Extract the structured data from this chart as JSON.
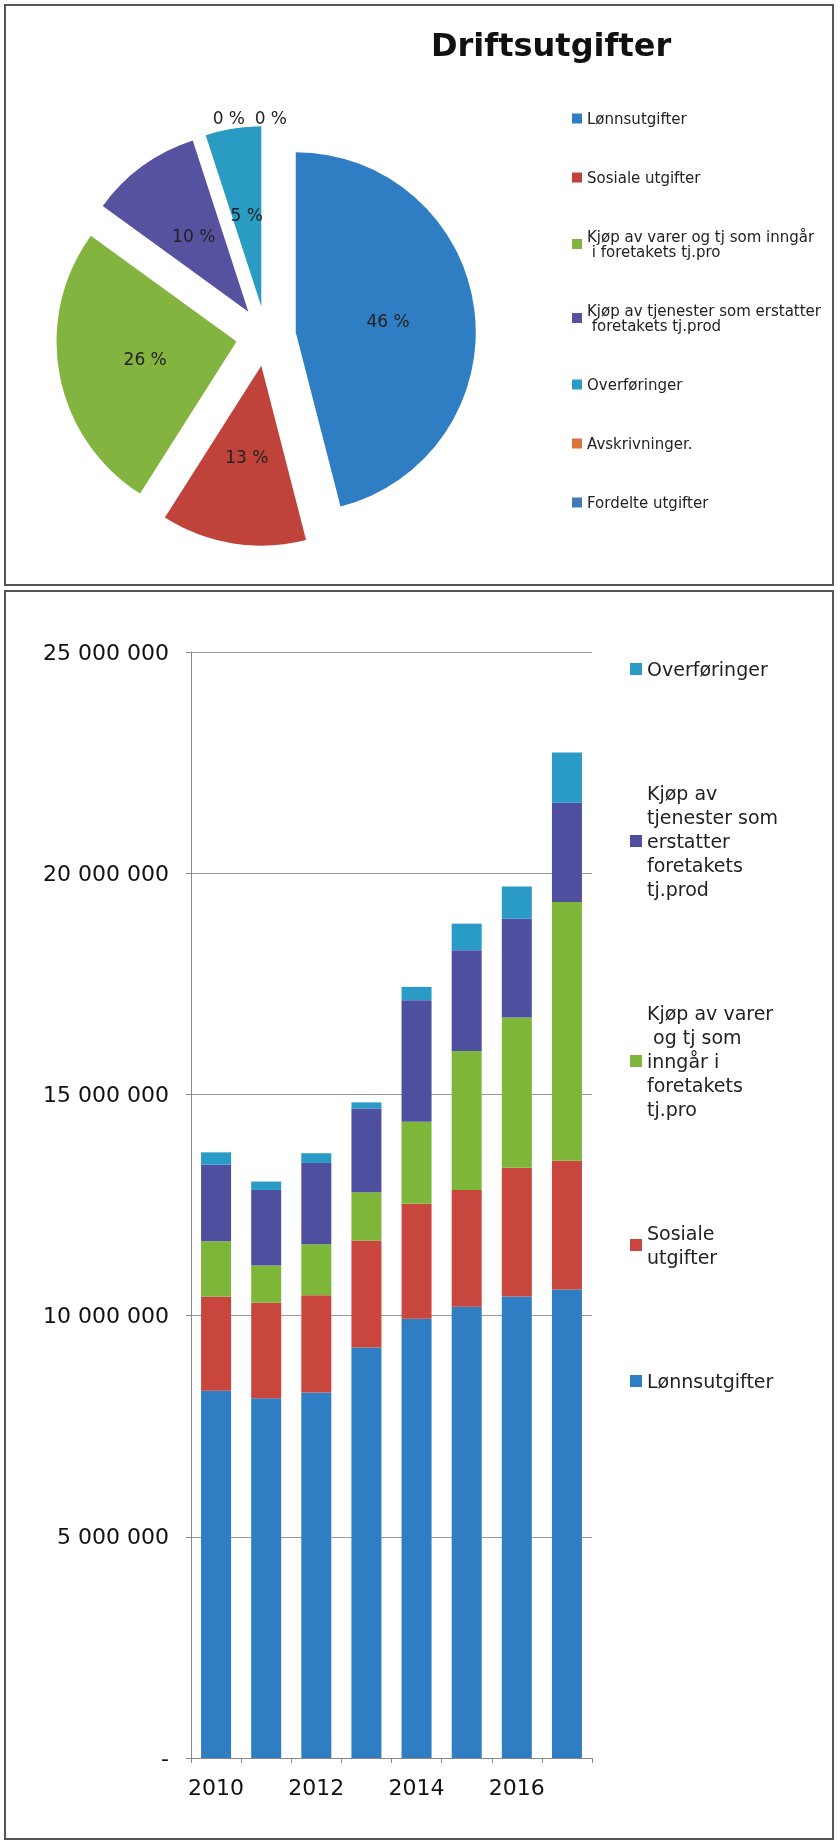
{
  "chart_data": [
    {
      "type": "pie",
      "title": "Driftsutgifter",
      "categories": [
        "Lønnsutgifter",
        "Sosiale utgifter",
        "Kjøp av varer og tj som inngår i foretakets tj.pro",
        "Kjøp av tjenester som erstatter foretakets tj.prod",
        "Overføringer",
        "Avskrivninger.",
        "Fordelte utgifter"
      ],
      "values": [
        46,
        13,
        26,
        10,
        5,
        0,
        0
      ],
      "value_labels": [
        "46 %",
        "13 %",
        "26 %",
        "10 %",
        "5 %",
        "0 %",
        "0 %"
      ],
      "colors": [
        "#2f7dc2",
        "#c0433b",
        "#84b440",
        "#56529f",
        "#2a9cc4",
        "#d9743a",
        "#3f79b8"
      ],
      "legend": "right"
    },
    {
      "type": "bar",
      "stacked": true,
      "categories": [
        "2010",
        null,
        "2012",
        null,
        "2014",
        null,
        "2016",
        null
      ],
      "series": [
        {
          "name": "Lønnsutgifter",
          "color": "#2f7ec4",
          "values": [
            8300000,
            8130000,
            8260000,
            9280000,
            9930000,
            10200000,
            10430000,
            10590000
          ]
        },
        {
          "name": "Sosiale utgifter",
          "color": "#c8463d",
          "values": [
            2130000,
            2160000,
            2200000,
            2420000,
            2600000,
            2640000,
            2910000,
            2910000
          ]
        },
        {
          "name": "Kjøp av varer og tj som inngår i foretakets tj.pro",
          "color": "#7eb63a",
          "values": [
            1250000,
            840000,
            1150000,
            1090000,
            1850000,
            3140000,
            3400000,
            5850000
          ]
        },
        {
          "name": "Kjøp av tjenester som erstatter foretakets tj.prod",
          "color": "#4f4f9f",
          "values": [
            1730000,
            1710000,
            1840000,
            1890000,
            2750000,
            2280000,
            2230000,
            2240000
          ]
        },
        {
          "name": "Overføringer",
          "color": "#2a9bc7",
          "values": [
            280000,
            190000,
            220000,
            140000,
            300000,
            600000,
            730000,
            1140000
          ]
        }
      ],
      "ylim": [
        0,
        25000000
      ],
      "yticks": [
        {
          "value": 0,
          "label": "-"
        },
        {
          "value": 5000000,
          "label": "5 000 000"
        },
        {
          "value": 10000000,
          "label": "10 000 000"
        },
        {
          "value": 15000000,
          "label": "15 000 000"
        },
        {
          "value": 20000000,
          "label": "20 000 000"
        },
        {
          "value": 25000000,
          "label": "25 000 000"
        }
      ],
      "grid": "y",
      "legend": "right"
    }
  ]
}
